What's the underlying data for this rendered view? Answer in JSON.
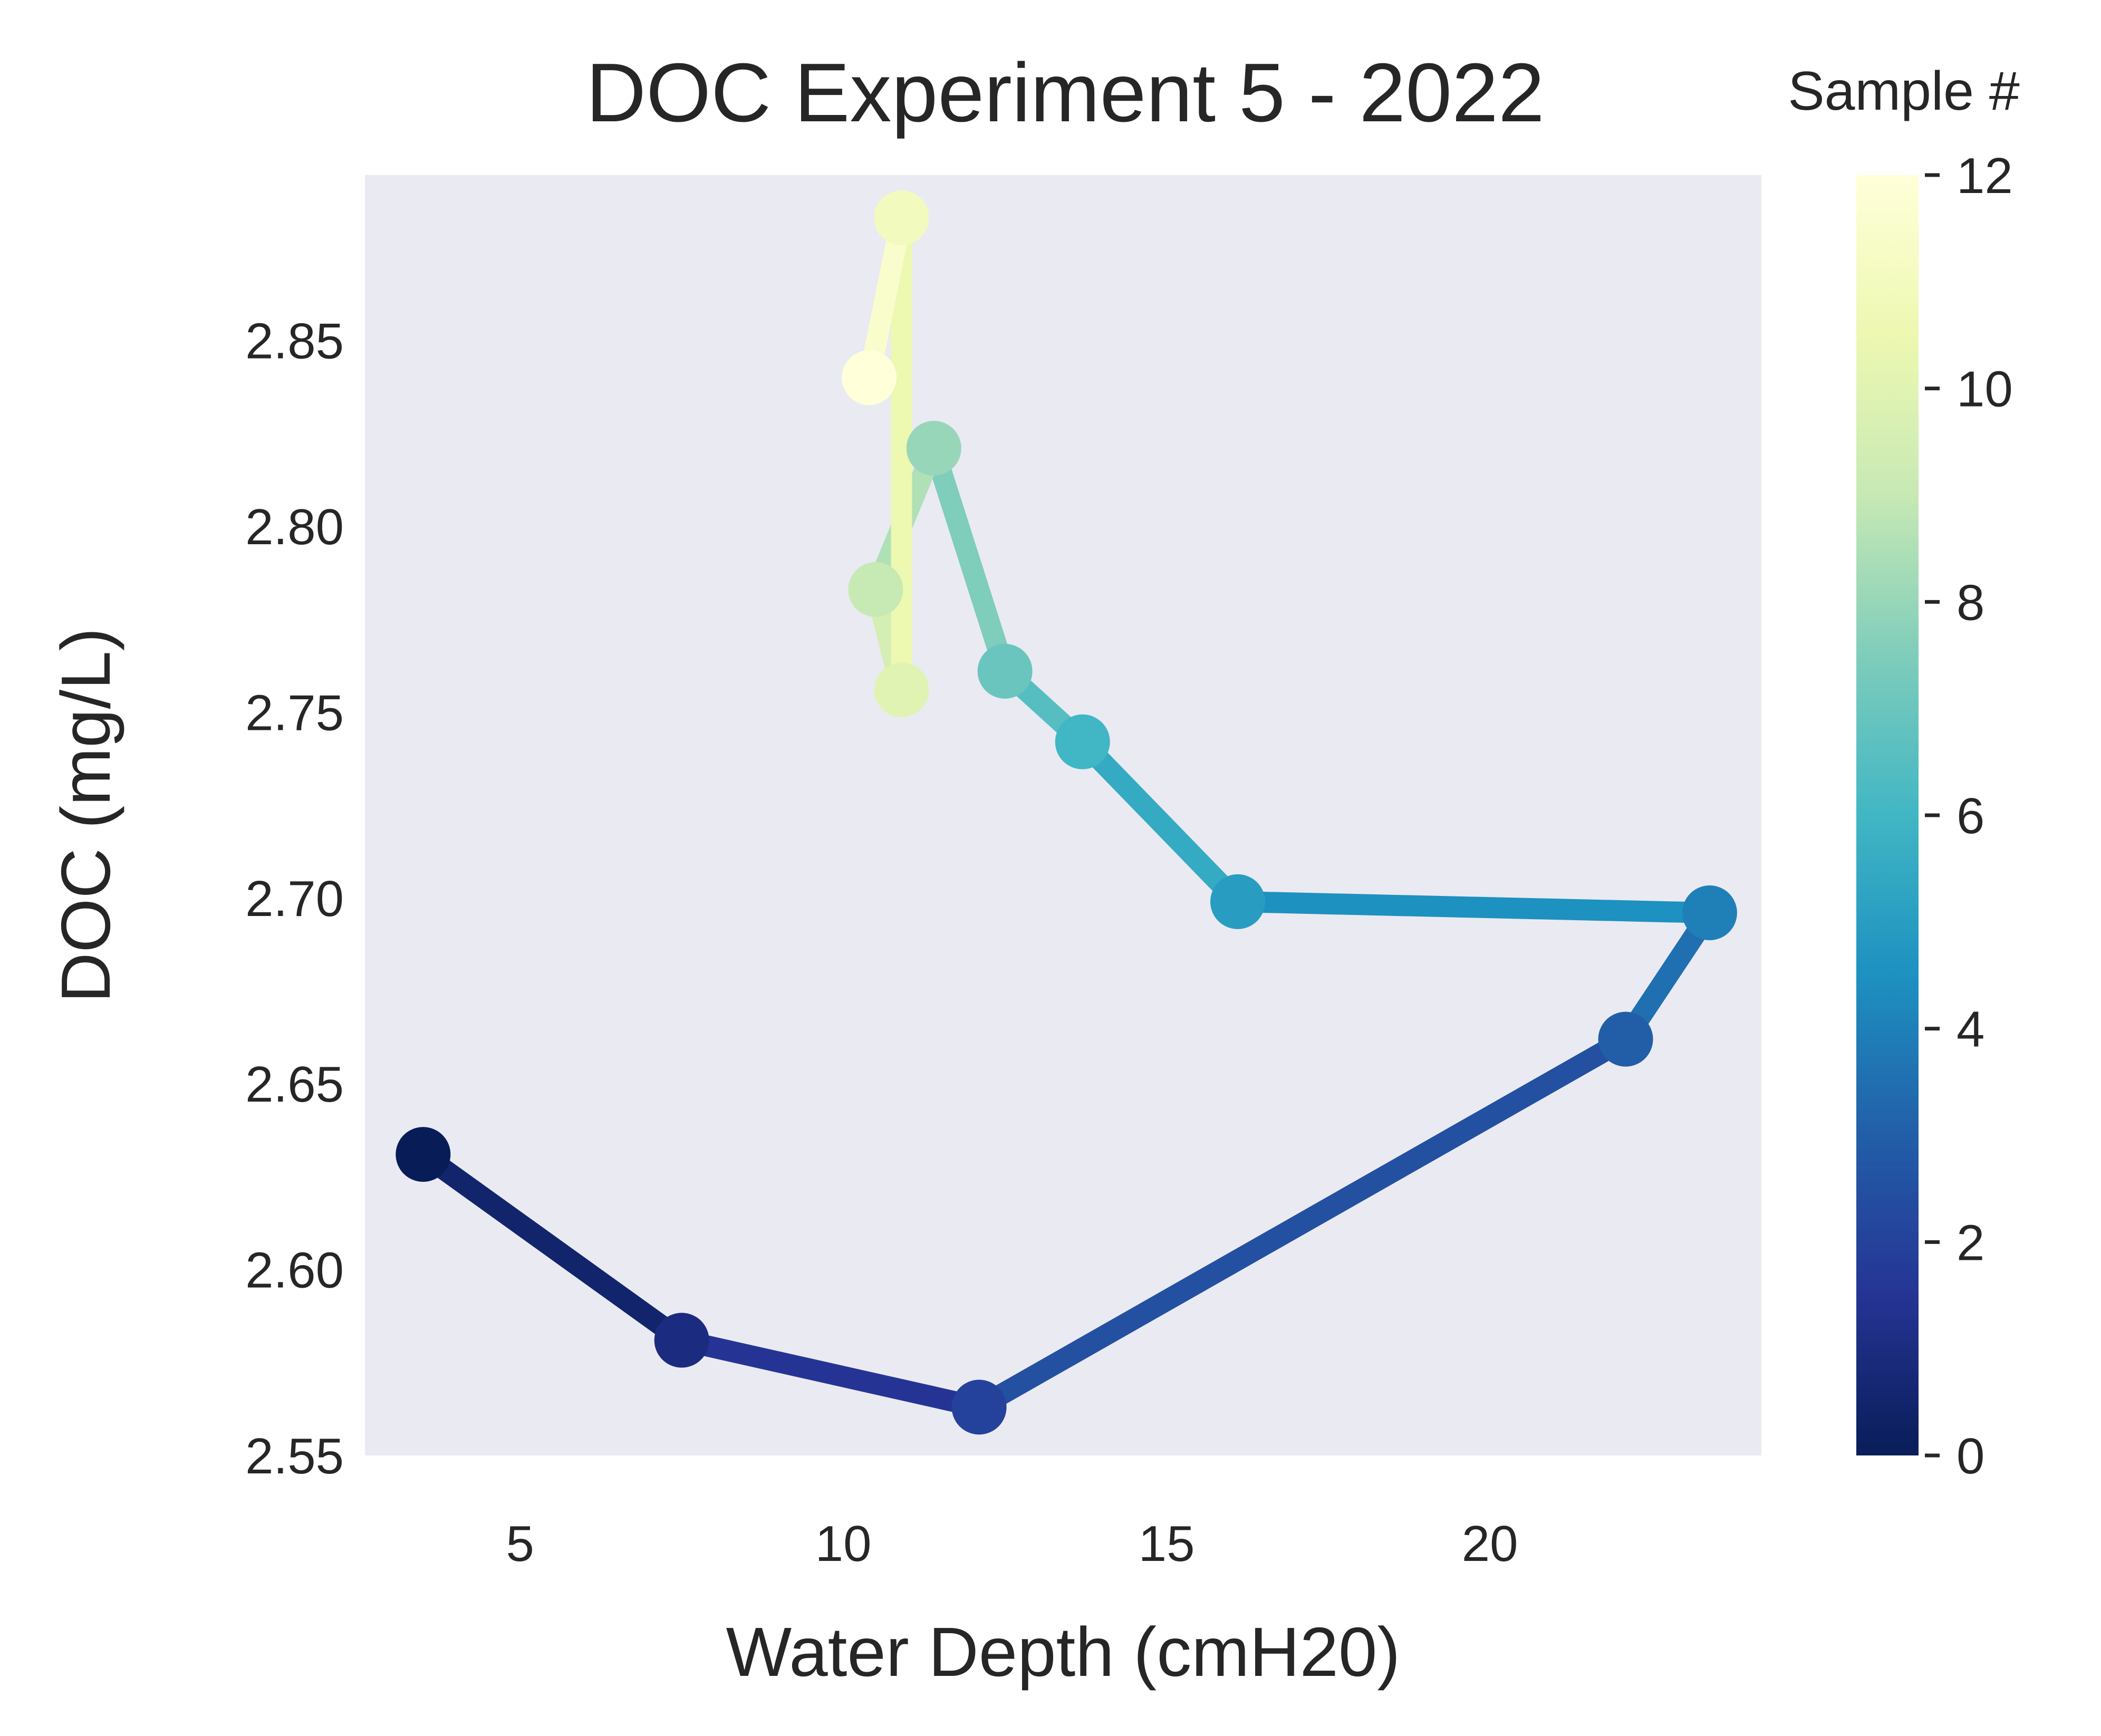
{
  "chart_data": {
    "type": "line",
    "title": "DOC Experiment 5 - 2022",
    "xlabel": "Water Depth (cmH20)",
    "ylabel": "DOC (mg/L)",
    "xlim": [
      2.6,
      24.2
    ],
    "ylim": [
      2.55,
      2.8945
    ],
    "x_ticks": [
      5,
      10,
      15,
      20
    ],
    "y_ticks": [
      2.55,
      2.6,
      2.65,
      2.7,
      2.75,
      2.8,
      2.85
    ],
    "y_tick_labels": [
      "2.55",
      "2.60",
      "2.65",
      "2.70",
      "2.75",
      "2.80",
      "2.85"
    ],
    "grid": false,
    "background": "#eaeaf2",
    "colormap": "YlGnBu_r",
    "color_stops": [
      "#081d58",
      "#253494",
      "#225ea8",
      "#1d91c0",
      "#41b6c4",
      "#7fcdbb",
      "#c7e9b4",
      "#edf8b1",
      "#ffffd9"
    ],
    "colorbar": {
      "title": "Sample #",
      "range": [
        0,
        12
      ],
      "ticks": [
        0,
        2,
        4,
        6,
        8,
        10,
        12
      ]
    },
    "series": [
      {
        "sample": [
          0,
          1,
          2,
          3,
          4,
          5,
          6,
          7,
          8,
          9,
          10,
          11,
          12
        ],
        "x": [
          3.5,
          7.5,
          12.1,
          22.1,
          23.4,
          16.1,
          13.7,
          12.5,
          11.4,
          10.5,
          10.9,
          10.9,
          10.4
        ],
        "y": [
          2.631,
          2.581,
          2.563,
          2.662,
          2.696,
          2.699,
          2.742,
          2.761,
          2.821,
          2.783,
          2.756,
          2.883,
          2.84
        ]
      }
    ]
  }
}
